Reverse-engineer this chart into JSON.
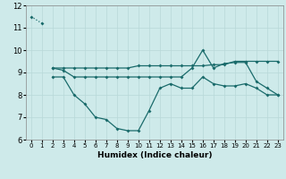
{
  "xlabel": "Humidex (Indice chaleur)",
  "background_color": "#ceeaea",
  "grid_color": "#b8d8d8",
  "line_color": "#1a6b6b",
  "xlim": [
    -0.5,
    23.5
  ],
  "ylim": [
    6,
    12
  ],
  "yticks": [
    6,
    7,
    8,
    9,
    10,
    11,
    12
  ],
  "xticks": [
    0,
    1,
    2,
    3,
    4,
    5,
    6,
    7,
    8,
    9,
    10,
    11,
    12,
    13,
    14,
    15,
    16,
    17,
    18,
    19,
    20,
    21,
    22,
    23
  ],
  "series": [
    {
      "x": [
        0,
        1
      ],
      "y": [
        11.5,
        11.2
      ],
      "style": "dotted",
      "marker": "D"
    },
    {
      "x": [
        2,
        3,
        4,
        5,
        6,
        7,
        8,
        9,
        10,
        11,
        12,
        13,
        14,
        15,
        16,
        17,
        18,
        19,
        20,
        21,
        22,
        23
      ],
      "y": [
        9.2,
        9.1,
        8.8,
        8.8,
        8.8,
        8.8,
        8.8,
        8.8,
        8.8,
        8.8,
        8.8,
        8.8,
        8.8,
        9.2,
        10.0,
        9.2,
        9.4,
        9.45,
        9.45,
        8.6,
        8.3,
        8.0
      ],
      "style": "solid",
      "marker": "D"
    },
    {
      "x": [
        2,
        3,
        4,
        5,
        6,
        7,
        8,
        9,
        10,
        11,
        12,
        13,
        14,
        15,
        16,
        17,
        18,
        19,
        20,
        21,
        22,
        23
      ],
      "y": [
        9.2,
        9.2,
        9.2,
        9.2,
        9.2,
        9.2,
        9.2,
        9.2,
        9.3,
        9.3,
        9.3,
        9.3,
        9.3,
        9.3,
        9.3,
        9.35,
        9.35,
        9.5,
        9.5,
        9.5,
        9.5,
        9.5
      ],
      "style": "solid",
      "marker": "D"
    },
    {
      "x": [
        2,
        3,
        4,
        5,
        6,
        7,
        8,
        9,
        10,
        11,
        12,
        13,
        14,
        15,
        16,
        17,
        18,
        19,
        20,
        21,
        22,
        23
      ],
      "y": [
        8.8,
        8.8,
        8.0,
        7.6,
        7.0,
        6.9,
        6.5,
        6.4,
        6.4,
        7.3,
        8.3,
        8.5,
        8.3,
        8.3,
        8.8,
        8.5,
        8.4,
        8.4,
        8.5,
        8.3,
        8.0,
        8.0
      ],
      "style": "solid",
      "marker": "D"
    }
  ]
}
